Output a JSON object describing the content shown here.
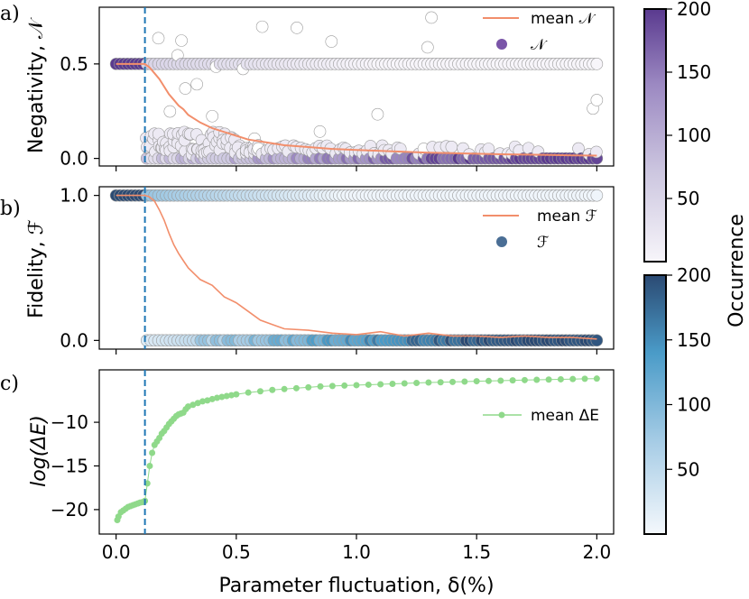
{
  "chart_data": [
    {
      "panel_label": "a)",
      "type": "scatter",
      "ylabel": "Negativity, 𝒩",
      "ylim": [
        -0.04,
        0.8
      ],
      "yticks": [
        "0.0",
        "0.5"
      ],
      "ytick_values": [
        0.0,
        0.5
      ],
      "xlim": [
        -0.07,
        2.07
      ],
      "grid": false,
      "legend_position": "top-right",
      "legend": [
        "mean 𝒩",
        "𝒩"
      ],
      "series": [
        {
          "name": "mean 𝒩",
          "kind": "line",
          "color": "#f28e6b",
          "x": [
            0.0,
            0.05,
            0.1,
            0.12,
            0.14,
            0.16,
            0.18,
            0.2,
            0.22,
            0.24,
            0.26,
            0.28,
            0.3,
            0.35,
            0.4,
            0.45,
            0.5,
            0.55,
            0.6,
            0.65,
            0.7,
            0.8,
            0.9,
            1.0,
            1.1,
            1.2,
            1.3,
            1.4,
            1.5,
            1.6,
            1.7,
            1.8,
            1.9,
            2.0
          ],
          "y": [
            0.5,
            0.5,
            0.5,
            0.5,
            0.48,
            0.45,
            0.42,
            0.38,
            0.34,
            0.31,
            0.28,
            0.26,
            0.23,
            0.19,
            0.16,
            0.14,
            0.12,
            0.1,
            0.09,
            0.08,
            0.07,
            0.06,
            0.05,
            0.045,
            0.04,
            0.035,
            0.03,
            0.028,
            0.025,
            0.022,
            0.02,
            0.018,
            0.016,
            0.015
          ]
        },
        {
          "name": "𝒩",
          "kind": "scatter",
          "color": "#7a55a8",
          "colorbar_label": "Occurrence",
          "colorbar_range": [
            0,
            200
          ]
        }
      ]
    },
    {
      "panel_label": "b)",
      "type": "scatter",
      "ylabel": "Fidelity, ℱ",
      "ylim": [
        -0.06,
        1.06
      ],
      "yticks": [
        "0.0",
        "1.0"
      ],
      "ytick_values": [
        0.0,
        1.0
      ],
      "xlim": [
        -0.07,
        2.07
      ],
      "grid": false,
      "legend_position": "center-right",
      "legend": [
        "mean ℱ",
        "ℱ"
      ],
      "series": [
        {
          "name": "mean ℱ",
          "kind": "line",
          "color": "#f28e6b",
          "x": [
            0.0,
            0.05,
            0.1,
            0.12,
            0.14,
            0.16,
            0.18,
            0.2,
            0.22,
            0.24,
            0.26,
            0.28,
            0.3,
            0.35,
            0.4,
            0.45,
            0.5,
            0.55,
            0.6,
            0.65,
            0.7,
            0.8,
            0.9,
            1.0,
            1.1,
            1.2,
            1.3,
            1.4,
            1.5,
            1.6,
            1.7,
            1.8,
            1.9,
            2.0
          ],
          "y": [
            1.0,
            1.0,
            1.0,
            1.0,
            0.99,
            0.96,
            0.9,
            0.83,
            0.74,
            0.66,
            0.6,
            0.55,
            0.5,
            0.42,
            0.38,
            0.3,
            0.26,
            0.2,
            0.14,
            0.11,
            0.08,
            0.07,
            0.05,
            0.04,
            0.06,
            0.03,
            0.05,
            0.03,
            0.03,
            0.02,
            0.03,
            0.02,
            0.02,
            0.01
          ]
        },
        {
          "name": "ℱ",
          "kind": "scatter",
          "color": "#4a6e95",
          "colorbar_label": "Occurrence",
          "colorbar_range": [
            0,
            200
          ]
        }
      ]
    },
    {
      "panel_label": "c)",
      "type": "line",
      "ylabel": "log(Δ_E)",
      "ylabel_display": "log(ΔE)",
      "xlabel": "Parameter fluctuation, δ(%)",
      "xticks": [
        "0.0",
        "0.5",
        "1.0",
        "1.5",
        "2.0"
      ],
      "xtick_values": [
        0.0,
        0.5,
        1.0,
        1.5,
        2.0
      ],
      "xlim": [
        -0.07,
        2.07
      ],
      "yticks": [
        "−20",
        "−15",
        "−10"
      ],
      "ytick_values": [
        -20,
        -15,
        -10
      ],
      "ylim": [
        -22.8,
        -4.0
      ],
      "grid": false,
      "legend_position": "upper-right",
      "legend": [
        "mean ΔE"
      ],
      "series": [
        {
          "name": "mean ΔE",
          "kind": "line-marker",
          "color": "#8fd98a",
          "x": [
            0.005,
            0.01,
            0.02,
            0.03,
            0.04,
            0.05,
            0.06,
            0.07,
            0.08,
            0.09,
            0.1,
            0.11,
            0.12,
            0.13,
            0.14,
            0.15,
            0.16,
            0.17,
            0.18,
            0.19,
            0.2,
            0.21,
            0.22,
            0.23,
            0.24,
            0.25,
            0.26,
            0.27,
            0.28,
            0.29,
            0.3,
            0.32,
            0.34,
            0.36,
            0.38,
            0.4,
            0.42,
            0.44,
            0.46,
            0.48,
            0.5,
            0.55,
            0.6,
            0.65,
            0.7,
            0.75,
            0.8,
            0.85,
            0.9,
            0.95,
            1.0,
            1.05,
            1.1,
            1.15,
            1.2,
            1.25,
            1.3,
            1.35,
            1.4,
            1.45,
            1.5,
            1.55,
            1.6,
            1.65,
            1.7,
            1.75,
            1.8,
            1.85,
            1.9,
            1.95,
            2.0
          ],
          "y": [
            -21.2,
            -20.8,
            -20.3,
            -20.1,
            -19.9,
            -19.7,
            -19.6,
            -19.5,
            -19.4,
            -19.3,
            -19.2,
            -19.15,
            -19.0,
            -17.0,
            -15.0,
            -13.5,
            -12.6,
            -12.2,
            -11.8,
            -11.3,
            -11.0,
            -10.6,
            -10.2,
            -9.9,
            -9.6,
            -9.3,
            -9.1,
            -9.0,
            -8.9,
            -8.5,
            -8.2,
            -8.0,
            -7.8,
            -7.6,
            -7.5,
            -7.35,
            -7.2,
            -7.1,
            -7.0,
            -6.9,
            -6.8,
            -6.6,
            -6.45,
            -6.3,
            -6.2,
            -6.1,
            -6.0,
            -5.9,
            -5.85,
            -5.8,
            -5.75,
            -5.7,
            -5.65,
            -5.6,
            -5.55,
            -5.5,
            -5.45,
            -5.42,
            -5.38,
            -5.34,
            -5.3,
            -5.27,
            -5.24,
            -5.2,
            -5.17,
            -5.14,
            -5.11,
            -5.08,
            -5.05,
            -5.02,
            -5.0
          ]
        }
      ]
    }
  ],
  "colorbars": [
    {
      "label": "Occurrence",
      "ticks": [
        "200",
        "150",
        "100",
        "50"
      ],
      "tick_values": [
        200,
        150,
        100,
        50
      ],
      "range": [
        0,
        200
      ],
      "colors": [
        "#f7f5fa",
        "#cdc7e0",
        "#9c89c2",
        "#5a3a8f"
      ]
    },
    {
      "label": "Occurrence",
      "ticks": [
        "200",
        "150",
        "100",
        "50"
      ],
      "tick_values": [
        200,
        150,
        100,
        50
      ],
      "range": [
        0,
        200
      ],
      "colors": [
        "#f4f8fc",
        "#a8cde6",
        "#4a9bc8",
        "#2b4a73"
      ]
    }
  ],
  "threshold_line": {
    "x": 0.12,
    "color": "#1f77b4",
    "style": "dashed"
  }
}
